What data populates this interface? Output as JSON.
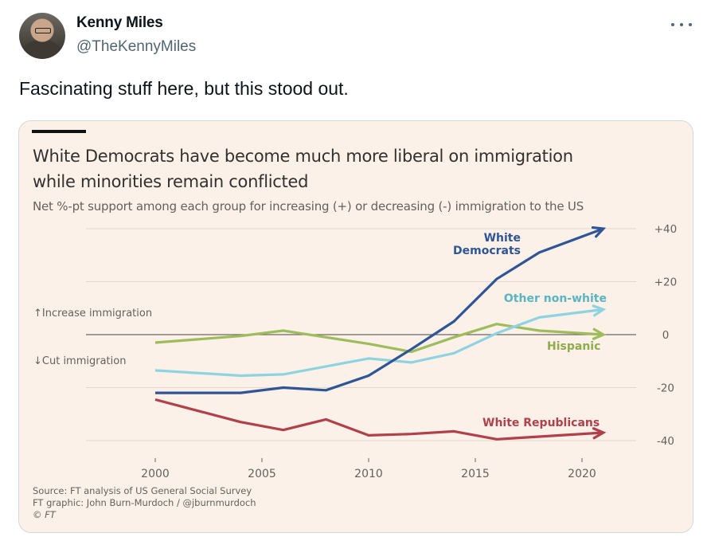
{
  "tweet": {
    "author_name": "Kenny Miles",
    "author_handle": "@TheKennyMiles",
    "more_icon": "more-horizontal-icon",
    "text": "Fascinating stuff here, but this stood out."
  },
  "chart_card": {
    "title_line1": "White Democrats have become much more liberal on immigration",
    "title_line2": "while minorities remain conflicted",
    "subtitle": "Net %-pt support among each group for increasing (+) or decreasing (-) immigration to the US",
    "source_line1": "Source: FT analysis of US General Social Survey",
    "source_line2": "FT graphic: John Burn-Murdoch / @jburnmurdoch",
    "source_line3": "© FT",
    "annotation_up": "↑Increase immigration",
    "annotation_down": "↓Cut immigration"
  },
  "chart_data": {
    "type": "line",
    "title": "White Democrats have become much more liberal on immigration while minorities remain conflicted",
    "subtitle": "Net %-pt support among each group for increasing (+) or decreasing (-) immigration to the US",
    "xlabel": "",
    "ylabel": "",
    "xlim": [
      1995,
      2022
    ],
    "ylim": [
      -45,
      42
    ],
    "x_ticks": [
      2000,
      2005,
      2010,
      2015,
      2020
    ],
    "x_tick_labels": [
      "2000",
      "2005",
      "2010",
      "2015",
      "2020"
    ],
    "y_ticks": [
      40,
      20,
      0,
      -20,
      -40
    ],
    "y_tick_labels": [
      "+40",
      "+20",
      "0",
      "-20",
      "-40"
    ],
    "y_axis_side": "right",
    "grid": true,
    "legend": "direct-labels",
    "x": [
      2000,
      2004,
      2006,
      2008,
      2010,
      2012,
      2014,
      2016,
      2018,
      2021
    ],
    "series": [
      {
        "name": "White Democrats",
        "label_lines": [
          "White",
          "Democrats"
        ],
        "color": "#2f5597",
        "values": [
          -22,
          -22,
          -20,
          -21,
          -15.5,
          -5.5,
          5,
          21,
          31,
          40
        ]
      },
      {
        "name": "Other non-white",
        "label_lines": [
          "Other non-white"
        ],
        "color": "#8fd3e0",
        "label_color": "#5bb4c2",
        "values": [
          -13.5,
          -15.5,
          -15,
          -12,
          -9,
          -10.5,
          -7,
          0.5,
          6.5,
          9.5
        ]
      },
      {
        "name": "Hispanic",
        "label_lines": [
          "Hispanic"
        ],
        "color": "#9ebc5b",
        "label_color": "#8fab4c",
        "values": [
          -3,
          -0.5,
          1.5,
          -1,
          -3.5,
          -6.5,
          -1,
          4,
          1.5,
          0
        ]
      },
      {
        "name": "White Republicans",
        "label_lines": [
          "White Republicans"
        ],
        "color": "#b0414c",
        "values": [
          -24.5,
          -33,
          -36,
          -32,
          -38,
          -37.5,
          -36.5,
          -39.5,
          -38.5,
          -37
        ]
      }
    ],
    "annotations": [
      "↑Increase immigration",
      "↓Cut immigration"
    ]
  }
}
